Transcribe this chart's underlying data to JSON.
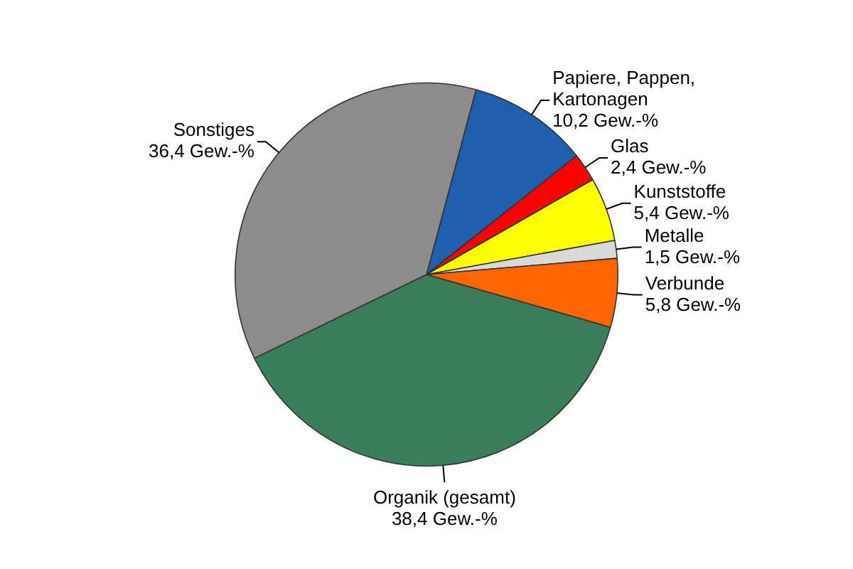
{
  "chart_data": {
    "type": "pie",
    "categories": [
      "Papiere, Pappen, Kartonagen",
      "Glas",
      "Kunststoffe",
      "Metalle",
      "Verbunde",
      "Organik (gesamt)",
      "Sonstiges"
    ],
    "values": [
      10.2,
      2.4,
      5.4,
      1.5,
      5.8,
      38.4,
      36.4
    ],
    "colors": [
      "#1f5fad",
      "#ff0000",
      "#ffff00",
      "#d9d9d9",
      "#ff6600",
      "#3a7d5a",
      "#8c8c8c"
    ],
    "value_labels": [
      "10,2 Gew.-%",
      "2,4 Gew.-%",
      "5,4 Gew.-%",
      "1,5 Gew.-%",
      "5,8 Gew.-%",
      "38,4 Gew.-%",
      "36,4 Gew.-%"
    ],
    "legend": false
  }
}
